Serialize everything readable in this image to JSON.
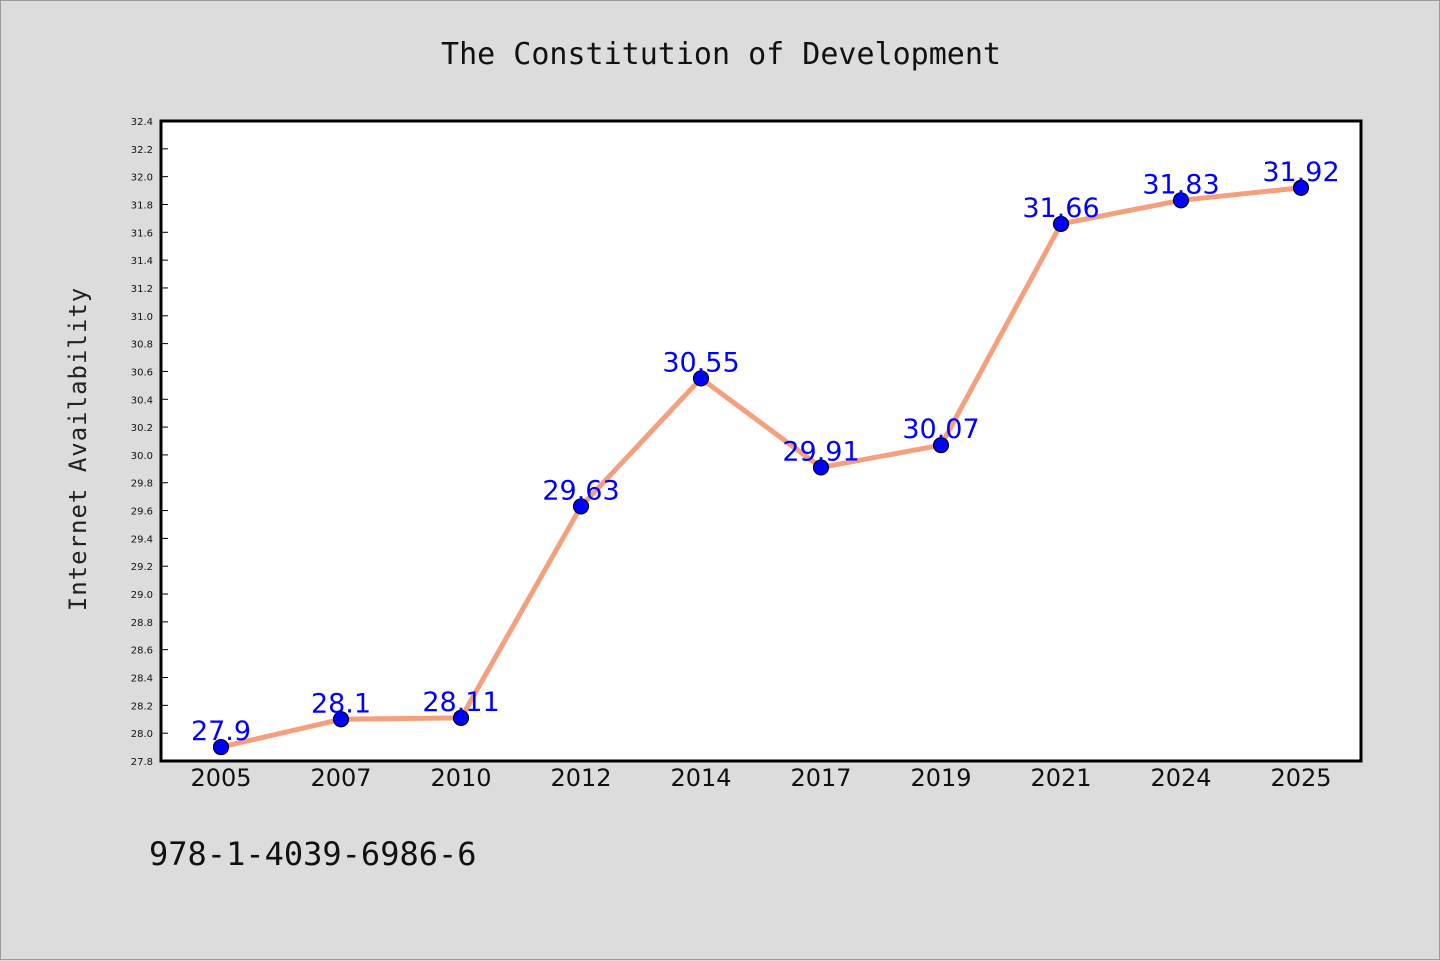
{
  "chart_data": {
    "type": "line",
    "title": "The Constitution of Development",
    "xlabel": "",
    "ylabel": "Internet Availability",
    "categories": [
      "2005",
      "2007",
      "2010",
      "2012",
      "2014",
      "2017",
      "2019",
      "2021",
      "2024",
      "2025"
    ],
    "series": [
      {
        "values": [
          27.9,
          28.1,
          28.11,
          29.63,
          30.55,
          29.91,
          30.07,
          31.66,
          31.83,
          31.92
        ],
        "labels": [
          "27.9",
          "28.1",
          "28.11",
          "29.63",
          "30.55",
          "29.91",
          "30.07",
          "31.66",
          "31.83",
          "31.92"
        ],
        "line_color": "#f4a07e",
        "marker_color": "#0000ff"
      }
    ],
    "ylim": [
      27.8,
      32.4
    ],
    "yticks": [
      "27.8",
      "28.0",
      "28.2",
      "28.4",
      "28.6",
      "28.8",
      "29.0",
      "29.2",
      "29.4",
      "29.6",
      "29.8",
      "30.0",
      "30.2",
      "30.4",
      "30.6",
      "30.8",
      "31.0",
      "31.2",
      "31.4",
      "31.6",
      "31.8",
      "32.0",
      "32.2",
      "32.4"
    ],
    "grid": false,
    "legend": "none",
    "data_label_color": "#0000ff"
  },
  "footer": {
    "isbn": "978-1-4039-6986-6"
  },
  "colors": {
    "background": "#dcdcdc",
    "plot_background": "#ffffff",
    "axis": "#000000"
  }
}
